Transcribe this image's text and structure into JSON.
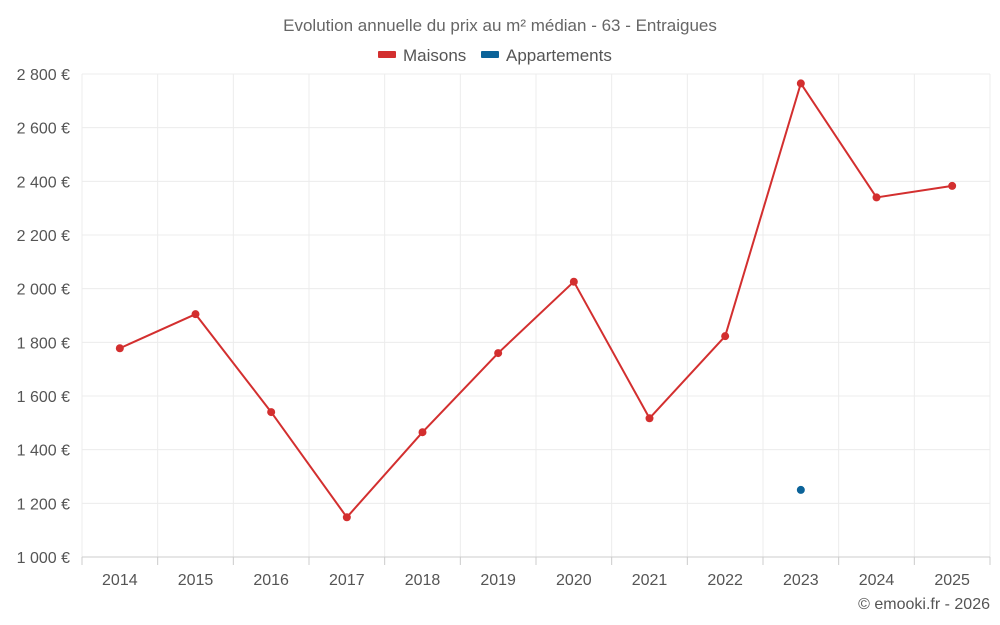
{
  "chart_data": {
    "type": "line",
    "title": "Evolution annuelle du prix au m² médian - 63 - Entraigues",
    "categories": [
      "2014",
      "2015",
      "2016",
      "2017",
      "2018",
      "2019",
      "2020",
      "2021",
      "2022",
      "2023",
      "2024",
      "2025"
    ],
    "series": [
      {
        "name": "Maisons",
        "color": "#d32f2f",
        "values": [
          1778,
          1905,
          1540,
          1148,
          1465,
          1760,
          2026,
          1517,
          1823,
          2765,
          2340,
          2383
        ]
      },
      {
        "name": "Appartements",
        "color": "#0b6399",
        "values": [
          null,
          null,
          null,
          null,
          null,
          null,
          null,
          null,
          null,
          1250,
          null,
          null
        ]
      }
    ],
    "ylim": [
      1000,
      2800
    ],
    "yticks": [
      1000,
      1200,
      1400,
      1600,
      1800,
      2000,
      2200,
      2400,
      2600,
      2800
    ],
    "ytick_labels": [
      "1 000 €",
      "1 200 €",
      "1 400 €",
      "1 600 €",
      "1 800 €",
      "2 000 €",
      "2 200 €",
      "2 400 €",
      "2 600 €",
      "2 800 €"
    ],
    "xlabel": "",
    "ylabel": "",
    "grid": true,
    "legend_position": "top-center",
    "credit": "© emooki.fr - 2026"
  }
}
